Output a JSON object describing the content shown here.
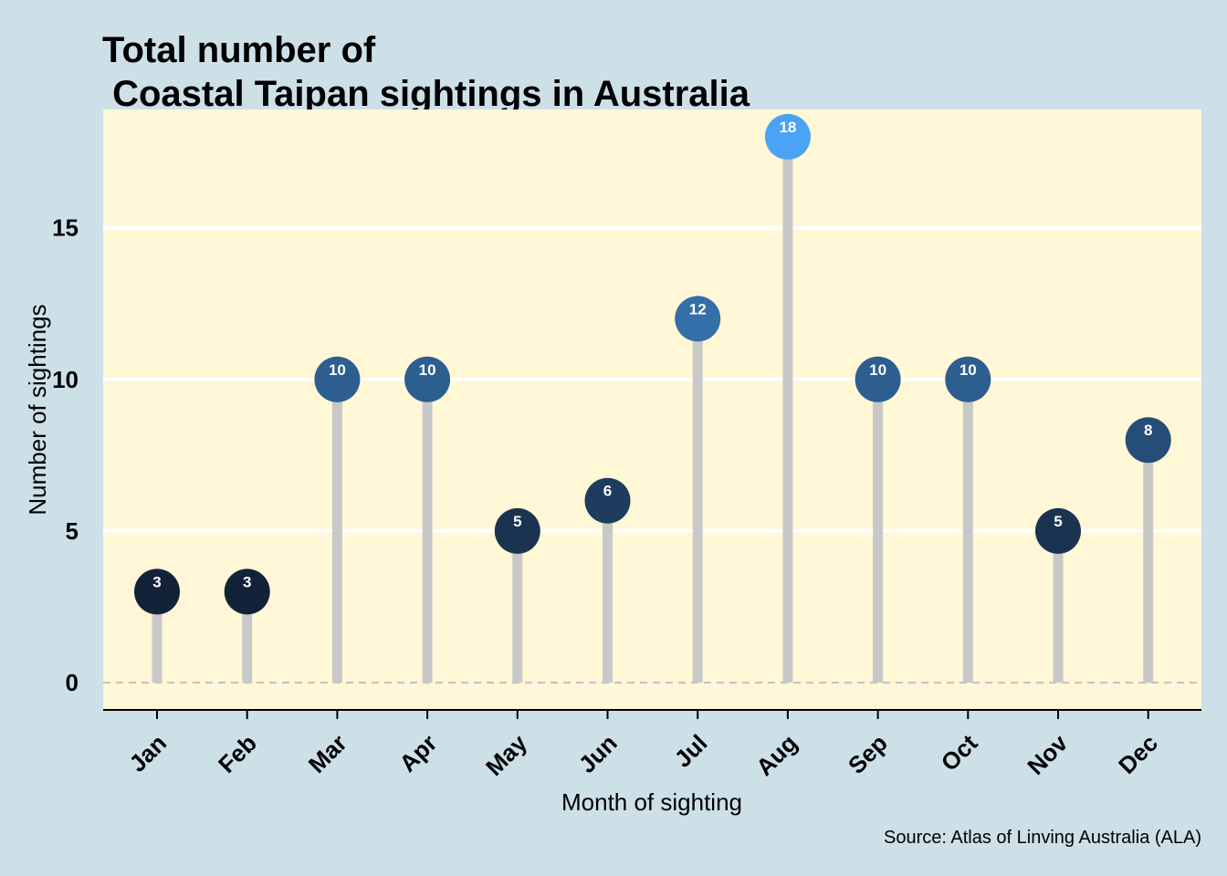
{
  "chart_data": {
    "type": "lollipop",
    "title_lines": [
      "Total number of",
      " Coastal Taipan sightings in Australia"
    ],
    "xlabel": "Month of sighting",
    "ylabel": "Number of sightings",
    "caption": "Source: Atlas of Linving Australia (ALA)",
    "categories": [
      "Jan",
      "Feb",
      "Mar",
      "Apr",
      "May",
      "Jun",
      "Jul",
      "Aug",
      "Sep",
      "Oct",
      "Nov",
      "Dec"
    ],
    "values": [
      3,
      3,
      10,
      10,
      5,
      6,
      12,
      18,
      10,
      10,
      5,
      8
    ],
    "ylim": [
      -0.9,
      18.9
    ],
    "yticks": [
      0,
      5,
      10,
      15
    ],
    "grid": "horizontal major lines",
    "legend": "none",
    "baseline": 0,
    "colors": {
      "page_background": "#cde0e8",
      "panel_background": "#fff7d6",
      "gridline": "#ffffff",
      "stem": "#c8c8c8",
      "baseline": "#c0c0c8",
      "point_low": "#132238",
      "point_high": "#4aa3f5",
      "label_text": "#ffffff"
    }
  }
}
